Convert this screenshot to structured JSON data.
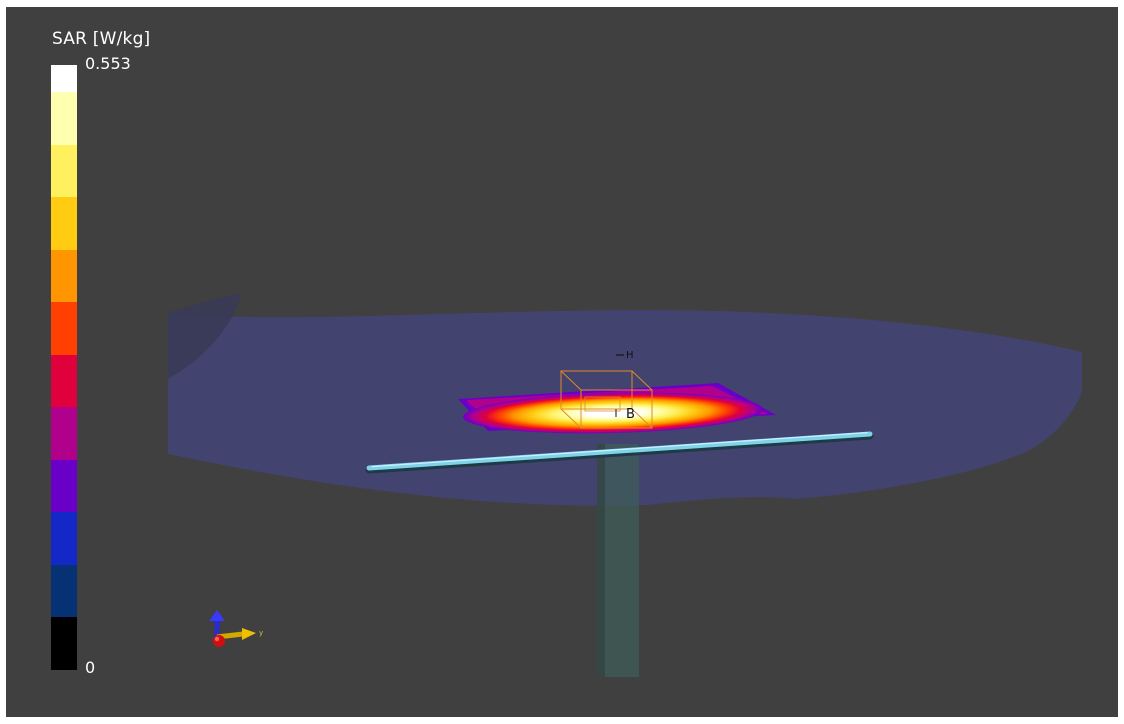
{
  "legend": {
    "title": "SAR [W/kg]",
    "max_label": "0.553",
    "min_label": "0",
    "colors": [
      "#ffffff",
      "#ffffb0",
      "#fff060",
      "#ffcc12",
      "#ff9500",
      "#ff4000",
      "#e0003c",
      "#b0008c",
      "#6a00c8",
      "#1428c8",
      "#063275",
      "#000000"
    ]
  },
  "scene": {
    "probe_label_h": "H",
    "probe_label_b": "B",
    "axis_label_y": "y"
  }
}
